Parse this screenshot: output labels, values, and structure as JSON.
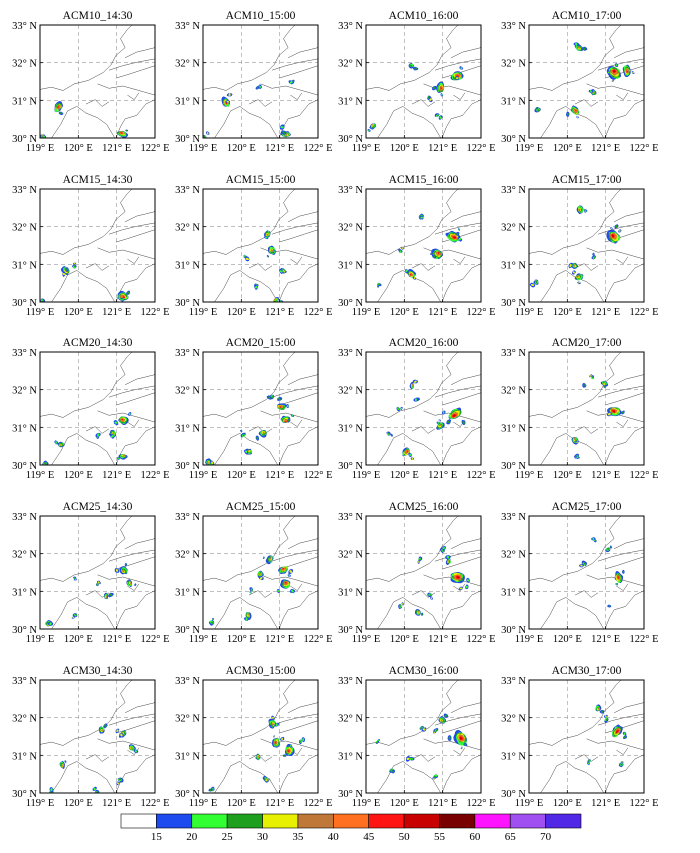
{
  "rows": [
    "ACM10",
    "ACM15",
    "ACM20",
    "ACM25",
    "ACM30"
  ],
  "times": [
    "14:30",
    "15:00",
    "16:00",
    "17:00"
  ],
  "lat_ticks": [
    "30° N",
    "31° N",
    "32° N",
    "33° N"
  ],
  "lon_ticks": [
    "119° E",
    "120° E",
    "121° E",
    "122° E"
  ],
  "colorbar": {
    "labels": [
      "15",
      "20",
      "25",
      "30",
      "35",
      "40",
      "45",
      "50",
      "55",
      "60",
      "65",
      "70"
    ],
    "colors": [
      "#ffffff",
      "#1e4bf0",
      "#32ff32",
      "#1ea01e",
      "#e6f000",
      "#c07838",
      "#ff7020",
      "#ff1414",
      "#c80000",
      "#780000",
      "#ff14ff",
      "#a050f0",
      "#5028e6"
    ]
  },
  "echo_palette": [
    "#1e4bf0",
    "#32ff32",
    "#1ea01e",
    "#e6f000",
    "#c07838",
    "#ff7020",
    "#ff1414",
    "#c80000"
  ]
}
